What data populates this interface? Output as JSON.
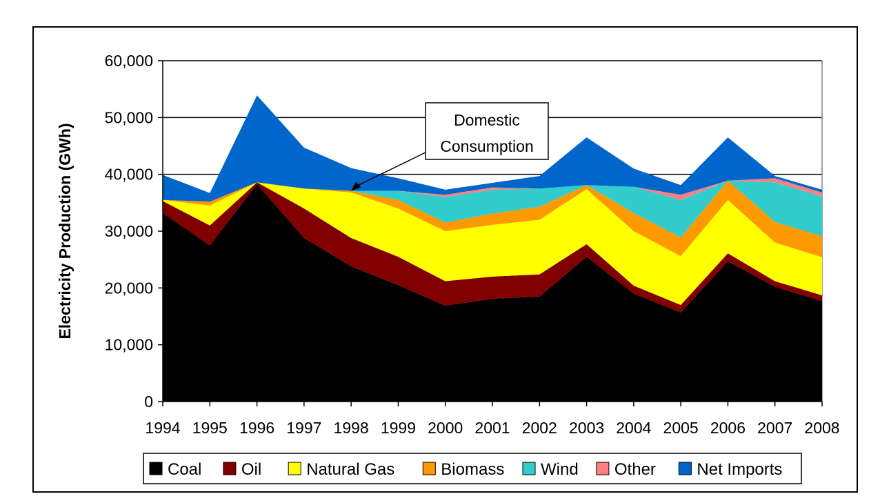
{
  "chart_data": {
    "type": "area",
    "stacked": true,
    "title": "",
    "xlabel": "",
    "ylabel": "Electricity Production (GWh)",
    "ylim": [
      0,
      60000
    ],
    "yticks": [
      "0",
      "10,000",
      "20,000",
      "30,000",
      "40,000",
      "50,000",
      "60,000"
    ],
    "ytick_values": [
      0,
      10000,
      20000,
      30000,
      40000,
      50000,
      60000
    ],
    "grid": "horizontal",
    "legend_position": "bottom",
    "categories": [
      "1994",
      "1995",
      "1996",
      "1997",
      "1998",
      "1999",
      "2000",
      "2001",
      "2002",
      "2003",
      "2004",
      "2005",
      "2006",
      "2007",
      "2008"
    ],
    "series": [
      {
        "name": "Coal",
        "color": "#000000",
        "values": [
          33200,
          27500,
          38300,
          28800,
          23800,
          20500,
          16900,
          18100,
          18500,
          25500,
          19000,
          15700,
          24700,
          20200,
          17700
        ]
      },
      {
        "name": "Oil",
        "color": "#800000",
        "values": [
          2100,
          3500,
          300,
          5200,
          5000,
          5000,
          4300,
          3900,
          3900,
          2200,
          1400,
          1300,
          1400,
          1000,
          1000
        ]
      },
      {
        "name": "Natural Gas",
        "color": "#ffff00",
        "values": [
          200,
          3500,
          0,
          3500,
          8000,
          8500,
          8800,
          9100,
          9600,
          9700,
          9600,
          8600,
          9400,
          6800,
          6700
        ]
      },
      {
        "name": "Biomass",
        "color": "#ff9900",
        "values": [
          0,
          700,
          0,
          0,
          300,
          1500,
          1500,
          2000,
          2300,
          700,
          3200,
          3300,
          3400,
          3600,
          3700
        ]
      },
      {
        "name": "Wind",
        "color": "#33cccc",
        "values": [
          0,
          0,
          0,
          0,
          0,
          1600,
          4500,
          4200,
          3200,
          0,
          4600,
          6600,
          0,
          7000,
          7000
        ]
      },
      {
        "name": "Other",
        "color": "#ff8080",
        "values": [
          0,
          0,
          0,
          0,
          0,
          0,
          400,
          400,
          0,
          0,
          0,
          900,
          0,
          700,
          700
        ]
      },
      {
        "name": "Net Imports",
        "color": "#0066cc",
        "values": [
          4400,
          1500,
          15300,
          7200,
          4000,
          2200,
          900,
          800,
          2200,
          8400,
          3200,
          1700,
          7600,
          400,
          500
        ]
      }
    ],
    "annotation": {
      "lines": [
        "Domestic",
        "Consumption"
      ],
      "target_category": "1998",
      "target_value": 37100
    }
  }
}
